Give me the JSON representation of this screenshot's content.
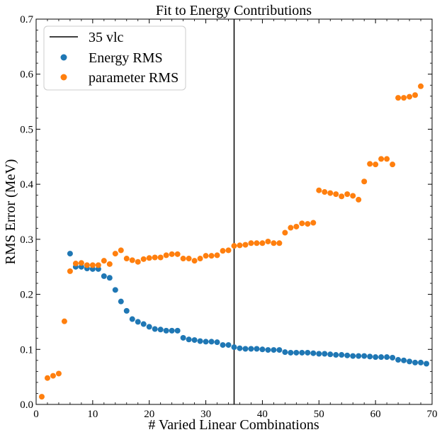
{
  "chart_data": {
    "type": "scatter",
    "title": "Fit to Energy Contributions",
    "xlabel": "# Varied Linear Combinations",
    "ylabel": "RMS Error (MeV)",
    "xlim": [
      0,
      70
    ],
    "ylim": [
      0,
      0.7
    ],
    "xticks": [
      0,
      10,
      20,
      30,
      40,
      50,
      60,
      70
    ],
    "yticks": [
      0.0,
      0.1,
      0.2,
      0.3,
      0.4,
      0.5,
      0.6,
      0.7
    ],
    "grid": false,
    "legend_position": "top-left",
    "vline": {
      "x": 35,
      "label": "35 vlc",
      "color": "#000000"
    },
    "series": [
      {
        "name": "Energy RMS",
        "color": "#1f77b4",
        "x": [
          6,
          7,
          8,
          9,
          10,
          11,
          12,
          13,
          14,
          15,
          16,
          17,
          18,
          19,
          20,
          21,
          22,
          23,
          24,
          25,
          26,
          27,
          28,
          29,
          30,
          31,
          32,
          33,
          34,
          35,
          36,
          37,
          38,
          39,
          40,
          41,
          42,
          43,
          44,
          45,
          46,
          47,
          48,
          49,
          50,
          51,
          52,
          53,
          54,
          55,
          56,
          57,
          58,
          59,
          60,
          61,
          62,
          63,
          64,
          65,
          66,
          67,
          68,
          69
        ],
        "y": [
          0.274,
          0.25,
          0.25,
          0.247,
          0.246,
          0.246,
          0.233,
          0.23,
          0.208,
          0.187,
          0.17,
          0.155,
          0.15,
          0.146,
          0.141,
          0.137,
          0.136,
          0.134,
          0.134,
          0.134,
          0.121,
          0.118,
          0.117,
          0.115,
          0.114,
          0.114,
          0.113,
          0.108,
          0.108,
          0.104,
          0.102,
          0.101,
          0.101,
          0.101,
          0.1,
          0.099,
          0.099,
          0.099,
          0.095,
          0.094,
          0.094,
          0.094,
          0.094,
          0.093,
          0.092,
          0.092,
          0.091,
          0.09,
          0.09,
          0.089,
          0.088,
          0.088,
          0.088,
          0.087,
          0.086,
          0.086,
          0.086,
          0.085,
          0.081,
          0.08,
          0.078,
          0.076,
          0.076,
          0.074
        ]
      },
      {
        "name": "parameter RMS",
        "color": "#ff7f0e",
        "x": [
          1,
          2,
          3,
          4,
          5,
          6,
          7,
          8,
          9,
          10,
          11,
          12,
          13,
          14,
          15,
          16,
          17,
          18,
          19,
          20,
          21,
          22,
          23,
          24,
          25,
          26,
          27,
          28,
          29,
          30,
          31,
          32,
          33,
          34,
          35,
          36,
          37,
          38,
          39,
          40,
          41,
          42,
          43,
          44,
          45,
          46,
          47,
          48,
          49,
          50,
          51,
          52,
          53,
          54,
          55,
          56,
          57,
          58,
          59,
          60,
          61,
          62,
          63,
          64,
          65,
          66,
          67,
          68
        ],
        "y": [
          0.014,
          0.048,
          0.052,
          0.056,
          0.151,
          0.242,
          0.256,
          0.257,
          0.253,
          0.253,
          0.253,
          0.261,
          0.255,
          0.274,
          0.28,
          0.265,
          0.262,
          0.259,
          0.264,
          0.266,
          0.267,
          0.267,
          0.271,
          0.273,
          0.273,
          0.265,
          0.265,
          0.261,
          0.265,
          0.27,
          0.27,
          0.271,
          0.279,
          0.28,
          0.288,
          0.289,
          0.29,
          0.293,
          0.293,
          0.293,
          0.296,
          0.293,
          0.293,
          0.312,
          0.321,
          0.323,
          0.329,
          0.328,
          0.33,
          0.389,
          0.386,
          0.384,
          0.382,
          0.378,
          0.382,
          0.379,
          0.372,
          0.405,
          0.437,
          0.436,
          0.446,
          0.446,
          0.436,
          0.557,
          0.557,
          0.559,
          0.562,
          0.578
        ]
      }
    ]
  }
}
